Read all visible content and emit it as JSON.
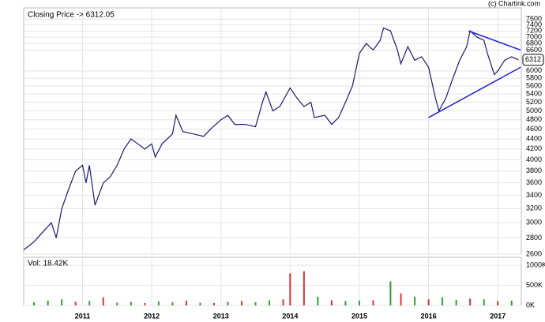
{
  "chart_data": [
    {
      "type": "line",
      "title": "Closing Price -> 6312.05",
      "source": "(c) Chartink.com",
      "last_label": "6312",
      "color": "#1a1a6e",
      "log_scale": true,
      "grid": true,
      "x": [
        2010.15,
        2010.3,
        2010.45,
        2010.55,
        2010.62,
        2010.7,
        2010.8,
        2010.9,
        2011.0,
        2011.05,
        2011.1,
        2011.18,
        2011.3,
        2011.4,
        2011.5,
        2011.6,
        2011.7,
        2011.8,
        2011.9,
        2012.0,
        2012.05,
        2012.15,
        2012.3,
        2012.35,
        2012.45,
        2012.6,
        2012.75,
        2012.85,
        2013.0,
        2013.1,
        2013.2,
        2013.35,
        2013.5,
        2013.6,
        2013.65,
        2013.75,
        2013.85,
        2014.0,
        2014.1,
        2014.2,
        2014.3,
        2014.35,
        2014.5,
        2014.6,
        2014.7,
        2014.8,
        2014.9,
        2015.0,
        2015.1,
        2015.2,
        2015.3,
        2015.35,
        2015.45,
        2015.55,
        2015.6,
        2015.7,
        2015.8,
        2015.9,
        2016.0,
        2016.1,
        2016.15,
        2016.25,
        2016.35,
        2016.45,
        2016.55,
        2016.6,
        2016.7,
        2016.8,
        2016.85,
        2016.95,
        2017.0,
        2017.1,
        2017.2,
        2017.3
      ],
      "values": [
        2650,
        2750,
        2900,
        3000,
        2800,
        3200,
        3500,
        3800,
        3900,
        3600,
        3900,
        3250,
        3600,
        3700,
        3900,
        4200,
        4400,
        4300,
        4200,
        4300,
        4050,
        4300,
        4500,
        4900,
        4550,
        4500,
        4450,
        4600,
        4800,
        4900,
        4700,
        4700,
        4650,
        5200,
        5450,
        5000,
        5100,
        5550,
        5300,
        5100,
        5200,
        4850,
        4900,
        4700,
        4850,
        5200,
        5600,
        6500,
        6800,
        6600,
        6900,
        7300,
        7200,
        6600,
        6200,
        6700,
        6300,
        6400,
        6100,
        5300,
        5000,
        5300,
        5800,
        6300,
        6700,
        7200,
        7000,
        6900,
        6500,
        5900,
        6000,
        6300,
        6400,
        6312
      ],
      "trendlines": [
        {
          "color": "#1f1fd6",
          "x": [
            2016.58,
            2017.33
          ],
          "values": [
            7200,
            6600
          ]
        },
        {
          "color": "#1f1fd6",
          "x": [
            2016.0,
            2017.33
          ],
          "values": [
            4850,
            6100
          ]
        }
      ],
      "xlim": [
        2010.15,
        2017.34
      ],
      "xticks": [
        2011,
        2012,
        2013,
        2014,
        2015,
        2016,
        2017
      ],
      "ylim": [
        2600,
        8000
      ],
      "yticks": [
        2600,
        2800,
        3000,
        3200,
        3400,
        3600,
        3800,
        4000,
        4200,
        4400,
        4600,
        4800,
        5000,
        5200,
        5400,
        5600,
        5800,
        6000,
        6600,
        6800,
        7000,
        7200,
        7400,
        7600
      ]
    },
    {
      "type": "bar",
      "title": "Vol: 18.42K",
      "grid": true,
      "x": [
        2010.3,
        2010.5,
        2010.7,
        2010.9,
        2011.1,
        2011.3,
        2011.5,
        2011.7,
        2011.9,
        2012.1,
        2012.3,
        2012.5,
        2012.7,
        2012.9,
        2013.1,
        2013.3,
        2013.5,
        2013.7,
        2013.9,
        2014.0,
        2014.2,
        2014.4,
        2014.6,
        2014.8,
        2015.0,
        2015.2,
        2015.45,
        2015.6,
        2015.8,
        2016.0,
        2016.2,
        2016.4,
        2016.6,
        2016.8,
        2017.0,
        2017.2
      ],
      "values": [
        80,
        120,
        150,
        90,
        110,
        200,
        70,
        90,
        60,
        100,
        80,
        120,
        70,
        60,
        90,
        110,
        80,
        130,
        150,
        800,
        850,
        220,
        130,
        110,
        120,
        130,
        600,
        300,
        220,
        150,
        200,
        140,
        170,
        150,
        110,
        120
      ],
      "colors": [
        "#2e9e2e",
        "#2e9e2e",
        "#2e9e2e",
        "#d33",
        "#2e9e2e",
        "#d33",
        "#2e9e2e",
        "#2e9e2e",
        "#d33",
        "#2e9e2e",
        "#2e9e2e",
        "#d33",
        "#2e9e2e",
        "#d33",
        "#2e9e2e",
        "#d33",
        "#2e9e2e",
        "#2e9e2e",
        "#d33",
        "#d33",
        "#d33",
        "#2e9e2e",
        "#d33",
        "#2e9e2e",
        "#2e9e2e",
        "#d33",
        "#2e9e2e",
        "#d33",
        "#2e9e2e",
        "#d33",
        "#2e9e2e",
        "#2e9e2e",
        "#d33",
        "#2e9e2e",
        "#d33",
        "#2e9e2e"
      ],
      "xlim": [
        2010.15,
        2017.34
      ],
      "xticks": [
        2011,
        2012,
        2013,
        2014,
        2015,
        2016,
        2017
      ],
      "ylim": [
        0,
        1200
      ],
      "yticks": [
        {
          "value": 0,
          "label": "0K"
        },
        {
          "value": 500,
          "label": "500K"
        },
        {
          "value": 1000,
          "label": "1000K"
        }
      ]
    }
  ]
}
